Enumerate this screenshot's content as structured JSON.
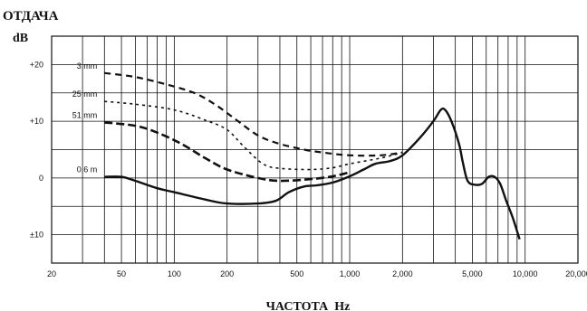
{
  "chart_data": {
    "type": "line",
    "title": "ОТДАЧА",
    "ylabel": "dB",
    "xlabel": "ЧАСТОТА  Hz",
    "x_scale": "log",
    "xlim": [
      20,
      20000
    ],
    "ylim": [
      -15,
      25
    ],
    "grid": true,
    "x_ticks": [
      {
        "value": 20,
        "label": "20"
      },
      {
        "value": 50,
        "label": "50"
      },
      {
        "value": 100,
        "label": "100"
      },
      {
        "value": 200,
        "label": "200"
      },
      {
        "value": 500,
        "label": "500"
      },
      {
        "value": 1000,
        "label": "1,000"
      },
      {
        "value": 2000,
        "label": "2,000"
      },
      {
        "value": 5000,
        "label": "5,000"
      },
      {
        "value": 10000,
        "label": "10,000"
      },
      {
        "value": 20000,
        "label": "20,000"
      }
    ],
    "y_ticks": [
      {
        "value": 20,
        "label": "+20"
      },
      {
        "value": 10,
        "label": "+10"
      },
      {
        "value": 0,
        "label": "0"
      },
      {
        "value": -10,
        "label": "±10"
      }
    ],
    "series": [
      {
        "name": "3 mm",
        "style": "dash-long",
        "points": [
          [
            40,
            18.5
          ],
          [
            60,
            17.8
          ],
          [
            90,
            16.5
          ],
          [
            130,
            15
          ],
          [
            170,
            13
          ],
          [
            220,
            10.5
          ],
          [
            300,
            7.5
          ],
          [
            400,
            6
          ],
          [
            550,
            5
          ],
          [
            700,
            4.5
          ],
          [
            1000,
            4
          ],
          [
            1500,
            4
          ],
          [
            2000,
            4.5
          ]
        ]
      },
      {
        "name": "25 mm",
        "style": "dash-short",
        "points": [
          [
            40,
            13.5
          ],
          [
            60,
            13
          ],
          [
            100,
            12
          ],
          [
            150,
            10.2
          ],
          [
            200,
            8.5
          ],
          [
            250,
            5.5
          ],
          [
            320,
            2.5
          ],
          [
            400,
            1.7
          ],
          [
            600,
            1.5
          ],
          [
            800,
            1.8
          ],
          [
            1000,
            2.5
          ],
          [
            1500,
            3.5
          ],
          [
            2000,
            4.5
          ]
        ]
      },
      {
        "name": "51 mm",
        "style": "dash-medium",
        "points": [
          [
            40,
            9.8
          ],
          [
            60,
            9.2
          ],
          [
            80,
            8
          ],
          [
            110,
            6
          ],
          [
            150,
            3.5
          ],
          [
            200,
            1.5
          ],
          [
            300,
            0
          ],
          [
            400,
            -0.5
          ],
          [
            600,
            -0.2
          ],
          [
            800,
            0.3
          ],
          [
            1000,
            1
          ]
        ]
      },
      {
        "name": "0.6 m",
        "style": "solid",
        "points": [
          [
            40,
            0.2
          ],
          [
            50,
            0.2
          ],
          [
            60,
            -0.5
          ],
          [
            80,
            -1.8
          ],
          [
            100,
            -2.5
          ],
          [
            150,
            -3.8
          ],
          [
            200,
            -4.5
          ],
          [
            300,
            -4.5
          ],
          [
            380,
            -4
          ],
          [
            450,
            -2.5
          ],
          [
            550,
            -1.5
          ],
          [
            650,
            -1.3
          ],
          [
            800,
            -0.8
          ],
          [
            1000,
            0.3
          ],
          [
            1200,
            1.5
          ],
          [
            1400,
            2.5
          ],
          [
            1700,
            3
          ],
          [
            2000,
            4
          ],
          [
            2500,
            7
          ],
          [
            3000,
            10
          ],
          [
            3300,
            12
          ],
          [
            3500,
            12
          ],
          [
            3800,
            10
          ],
          [
            4200,
            6
          ],
          [
            4400,
            3
          ],
          [
            4700,
            -0.5
          ],
          [
            5200,
            -1.2
          ],
          [
            5700,
            -1
          ],
          [
            6200,
            0.2
          ],
          [
            6700,
            0.2
          ],
          [
            7200,
            -1
          ],
          [
            7800,
            -4
          ],
          [
            8500,
            -7
          ],
          [
            9300,
            -10.8
          ]
        ]
      }
    ]
  }
}
